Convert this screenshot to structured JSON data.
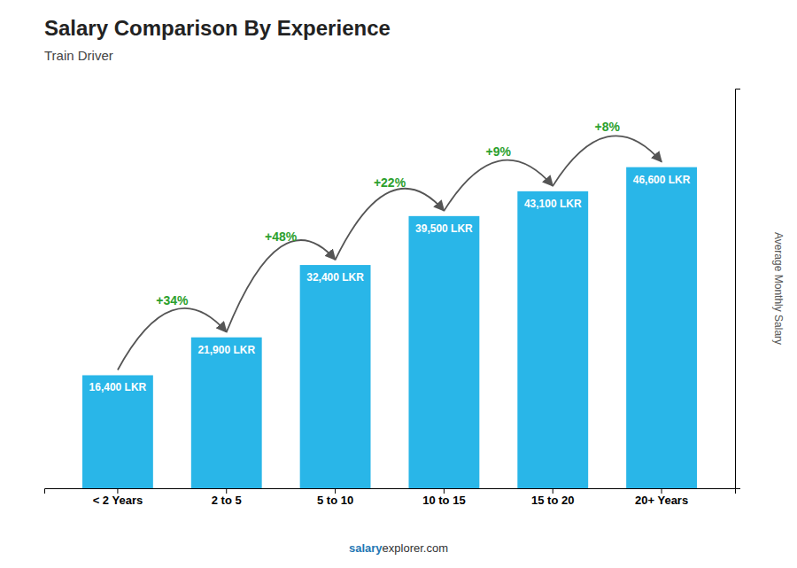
{
  "chart_data": {
    "type": "bar",
    "title": "Salary Comparison By Experience",
    "subtitle": "Train Driver",
    "categories": [
      "< 2 Years",
      "2 to 5",
      "5 to 10",
      "10 to 15",
      "15 to 20",
      "20+ Years"
    ],
    "values": [
      16400,
      21900,
      32400,
      39500,
      43100,
      46600
    ],
    "value_labels": [
      "16,400 LKR",
      "21,900 LKR",
      "32,400 LKR",
      "39,500 LKR",
      "43,100 LKR",
      "46,600 LKR"
    ],
    "data_labels": true,
    "color": "#29b6e8",
    "ylabel": "Average Monthly Salary",
    "ylim": [
      0,
      58000
    ],
    "tick_labels": "x",
    "grid": false,
    "annotations": [
      "+34%",
      "+48%",
      "+22%",
      "+9%",
      "+8%"
    ],
    "footer": [
      "salary",
      "explorer.com"
    ]
  }
}
